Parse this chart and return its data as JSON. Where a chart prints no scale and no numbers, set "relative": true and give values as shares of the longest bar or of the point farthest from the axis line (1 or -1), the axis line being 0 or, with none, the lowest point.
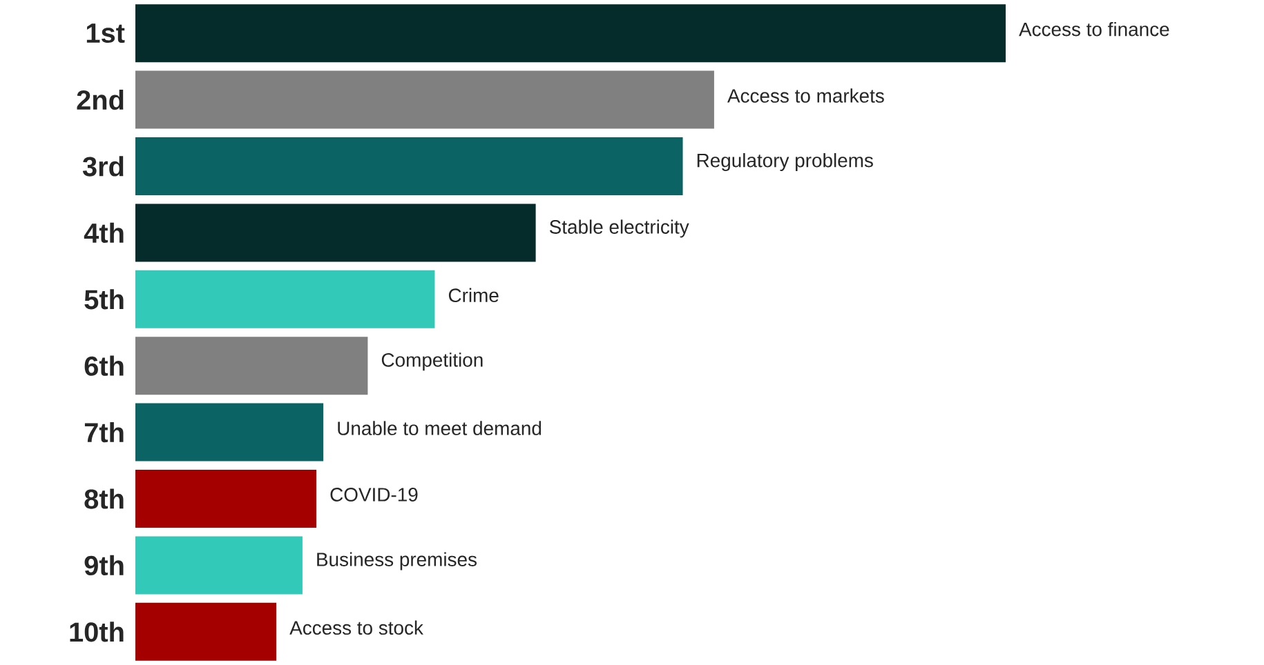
{
  "chart_data": {
    "type": "bar",
    "orientation": "horizontal",
    "relative": true,
    "categories": [
      "1st",
      "2nd",
      "3rd",
      "4th",
      "5th",
      "6th",
      "7th",
      "8th",
      "9th",
      "10th"
    ],
    "values": [
      1,
      0.665,
      0.629,
      0.46,
      0.344,
      0.267,
      0.216,
      0.208,
      0.192,
      0.162
    ],
    "colors": [
      "#062b2b",
      "#808080",
      "#0b6363",
      "#062b2b",
      "#33c9b9",
      "#808080",
      "#0b6363",
      "#a50000",
      "#33c9b9",
      "#a50000"
    ],
    "annotations": [
      {
        "text": "Access to finance",
        "x": 1,
        "y": "1st"
      },
      {
        "text": "Access to markets",
        "x": 0.665,
        "y": "2nd"
      },
      {
        "text": "Regulatory problems",
        "x": 0.629,
        "y": "3rd"
      },
      {
        "text": "Stable electricity",
        "x": 0.46,
        "y": "4th"
      },
      {
        "text": "Crime",
        "x": 0.344,
        "y": "5th"
      },
      {
        "text": "Competition",
        "x": 0.267,
        "y": "6th"
      },
      {
        "text": "Unable to meet demand",
        "x": 0.216,
        "y": "7th"
      },
      {
        "text": "COVID-19",
        "x": 0.208,
        "y": "8th"
      },
      {
        "text": "Business premises",
        "x": 0.192,
        "y": "9th"
      },
      {
        "text": "Access to stock",
        "x": 0.162,
        "y": "10th"
      }
    ]
  }
}
